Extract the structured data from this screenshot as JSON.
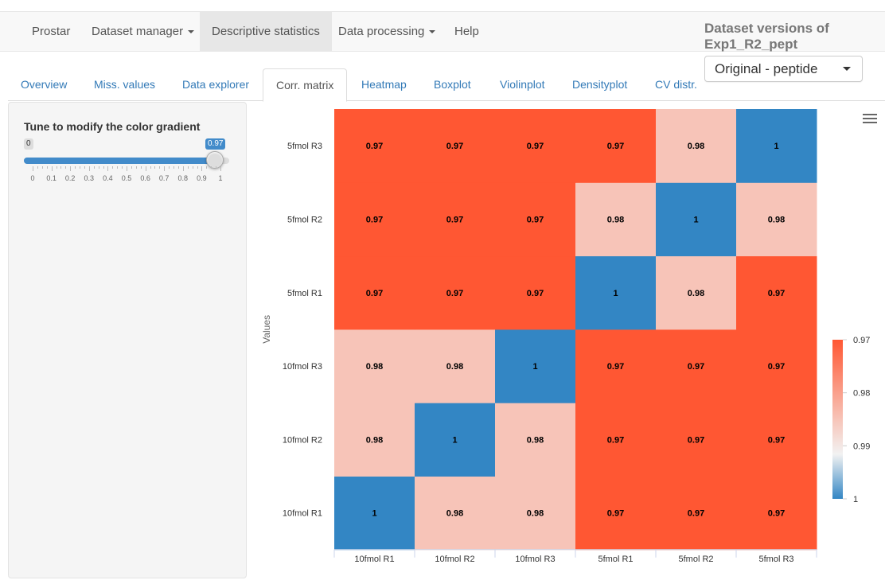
{
  "navbar": {
    "brand": "Prostar",
    "items": [
      {
        "label": "Dataset manager",
        "dropdown": true
      },
      {
        "label": "Descriptive statistics",
        "dropdown": false,
        "active": true
      },
      {
        "label": "Data processing",
        "dropdown": true
      },
      {
        "label": "Help",
        "dropdown": false
      }
    ]
  },
  "dataset_versions": {
    "title": "Dataset versions of Exp1_R2_pept",
    "selected": "Original - peptide"
  },
  "tabs": [
    {
      "label": "Overview"
    },
    {
      "label": "Miss. values"
    },
    {
      "label": "Data explorer"
    },
    {
      "label": "Corr. matrix",
      "active": true
    },
    {
      "label": "Heatmap"
    },
    {
      "label": "Boxplot"
    },
    {
      "label": "Violinplot"
    },
    {
      "label": "Densityplot"
    },
    {
      "label": "CV distr."
    }
  ],
  "sidebar": {
    "slider": {
      "label": "Tune to modify the color gradient",
      "min": 0,
      "max": 1,
      "value": 0.97,
      "min_label": "0",
      "value_label": "0.97",
      "tick_labels": [
        "0",
        "0.1",
        "0.2",
        "0.3",
        "0.4",
        "0.5",
        "0.6",
        "0.7",
        "0.8",
        "0.9",
        "1"
      ]
    }
  },
  "chart_data": {
    "type": "heatmap",
    "x_categories": [
      "10fmol R1",
      "10fmol R2",
      "10fmol R3",
      "5fmol R1",
      "5fmol R2",
      "5fmol R3"
    ],
    "y_categories": [
      "10fmol R1",
      "10fmol R2",
      "10fmol R3",
      "5fmol R1",
      "5fmol R2",
      "5fmol R3"
    ],
    "ylabel": "Values",
    "values": [
      [
        1,
        0.98,
        0.98,
        0.97,
        0.97,
        0.97
      ],
      [
        0.98,
        1,
        0.98,
        0.97,
        0.97,
        0.97
      ],
      [
        0.98,
        0.98,
        1,
        0.97,
        0.97,
        0.97
      ],
      [
        0.97,
        0.97,
        0.97,
        1,
        0.98,
        0.97
      ],
      [
        0.97,
        0.97,
        0.97,
        0.98,
        1,
        0.98
      ],
      [
        0.97,
        0.97,
        0.97,
        0.97,
        0.98,
        1
      ]
    ],
    "color_scale": {
      "min_color": "#ff5733",
      "mid_color": "#f7c4b8",
      "max_color": "#3386c4"
    },
    "legend": {
      "position": "right",
      "labels": [
        "0.97",
        "0.98",
        "0.99",
        "1"
      ]
    }
  }
}
